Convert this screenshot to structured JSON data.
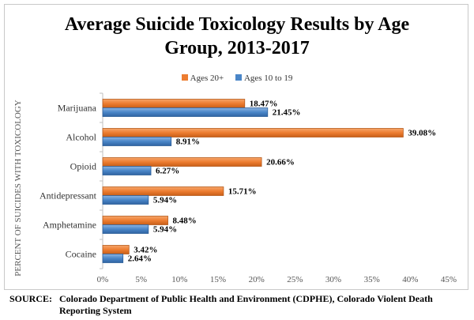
{
  "chart_data": {
    "type": "bar",
    "orientation": "horizontal",
    "title_line1": "Average Suicide Toxicology Results by Age",
    "title_line2": "Group, 2013-2017",
    "ylabel": "PERCENT OF SUICIDES WITH TOXICOLOGY",
    "xlabel": "",
    "categories": [
      "Marijuana",
      "Alcohol",
      "Opioid",
      "Antidepressant",
      "Amphetamine",
      "Cocaine"
    ],
    "series": [
      {
        "name": "Ages 20+",
        "color": "#ed7d31",
        "values": [
          18.47,
          39.08,
          20.66,
          15.71,
          8.48,
          3.42
        ],
        "labels": [
          "18.47%",
          "39.08%",
          "20.66%",
          "15.71%",
          "8.48%",
          "3.42%"
        ]
      },
      {
        "name": "Ages 10 to 19",
        "color": "#4a86c8",
        "values": [
          21.45,
          8.91,
          6.27,
          5.94,
          5.94,
          2.64
        ],
        "labels": [
          "21.45%",
          "8.91%",
          "6.27%",
          "5.94%",
          "5.94%",
          "2.64%"
        ]
      }
    ],
    "xlim": [
      0,
      45
    ],
    "xticks": [
      "0%",
      "5%",
      "10%",
      "15%",
      "20%",
      "25%",
      "30%",
      "35%",
      "40%",
      "45%"
    ],
    "legend_position": "top",
    "grid": false
  },
  "source": {
    "label": "SOURCE:",
    "text": "Colorado Department of Public Health and Environment (CDPHE), Colorado Violent Death Reporting System"
  }
}
